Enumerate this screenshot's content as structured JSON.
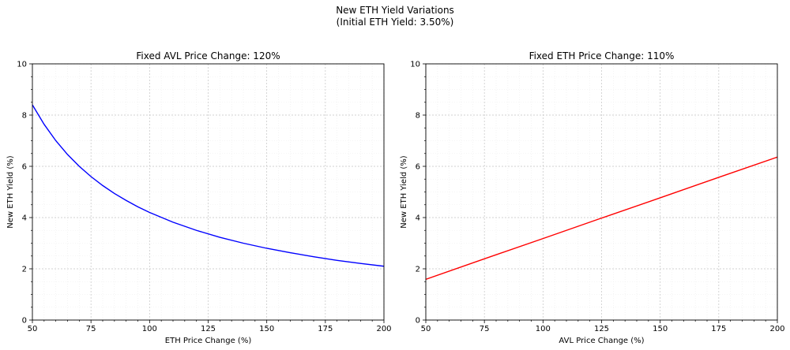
{
  "figure": {
    "suptitle_line1": "New ETH Yield Variations",
    "suptitle_line2": "(Initial ETH Yield: 3.50%)"
  },
  "chart_data": [
    {
      "type": "line",
      "title": "Fixed AVL Price Change: 120%",
      "xlabel": "ETH Price Change (%)",
      "ylabel": "New ETH Yield (%)",
      "xlim": [
        50,
        200
      ],
      "ylim": [
        0,
        10
      ],
      "xticks": [
        50,
        75,
        100,
        125,
        150,
        175,
        200
      ],
      "yticks": [
        0,
        2,
        4,
        6,
        8,
        10
      ],
      "grid": "on (major and minor, dotted)",
      "series": [
        {
          "color": "#0000ff",
          "x": [
            50,
            55,
            60,
            65,
            70,
            75,
            80,
            85,
            90,
            95,
            100,
            110,
            120,
            130,
            140,
            150,
            160,
            170,
            180,
            190,
            200
          ],
          "y": [
            8.4,
            7.64,
            7.0,
            6.46,
            6.0,
            5.6,
            5.25,
            4.94,
            4.67,
            4.42,
            4.2,
            3.82,
            3.5,
            3.23,
            3.0,
            2.8,
            2.63,
            2.47,
            2.33,
            2.21,
            2.1
          ]
        }
      ]
    },
    {
      "type": "line",
      "title": "Fixed ETH Price Change: 110%",
      "xlabel": "AVL Price Change (%)",
      "ylabel": "New ETH Yield (%)",
      "xlim": [
        50,
        200
      ],
      "ylim": [
        0,
        10
      ],
      "xticks": [
        50,
        75,
        100,
        125,
        150,
        175,
        200
      ],
      "yticks": [
        0,
        2,
        4,
        6,
        8,
        10
      ],
      "grid": "on (major and minor, dotted)",
      "series": [
        {
          "color": "#ff0000",
          "x": [
            50,
            75,
            100,
            125,
            150,
            175,
            200
          ],
          "y": [
            1.59,
            2.39,
            3.18,
            3.98,
            4.77,
            5.57,
            6.36
          ]
        }
      ]
    }
  ]
}
